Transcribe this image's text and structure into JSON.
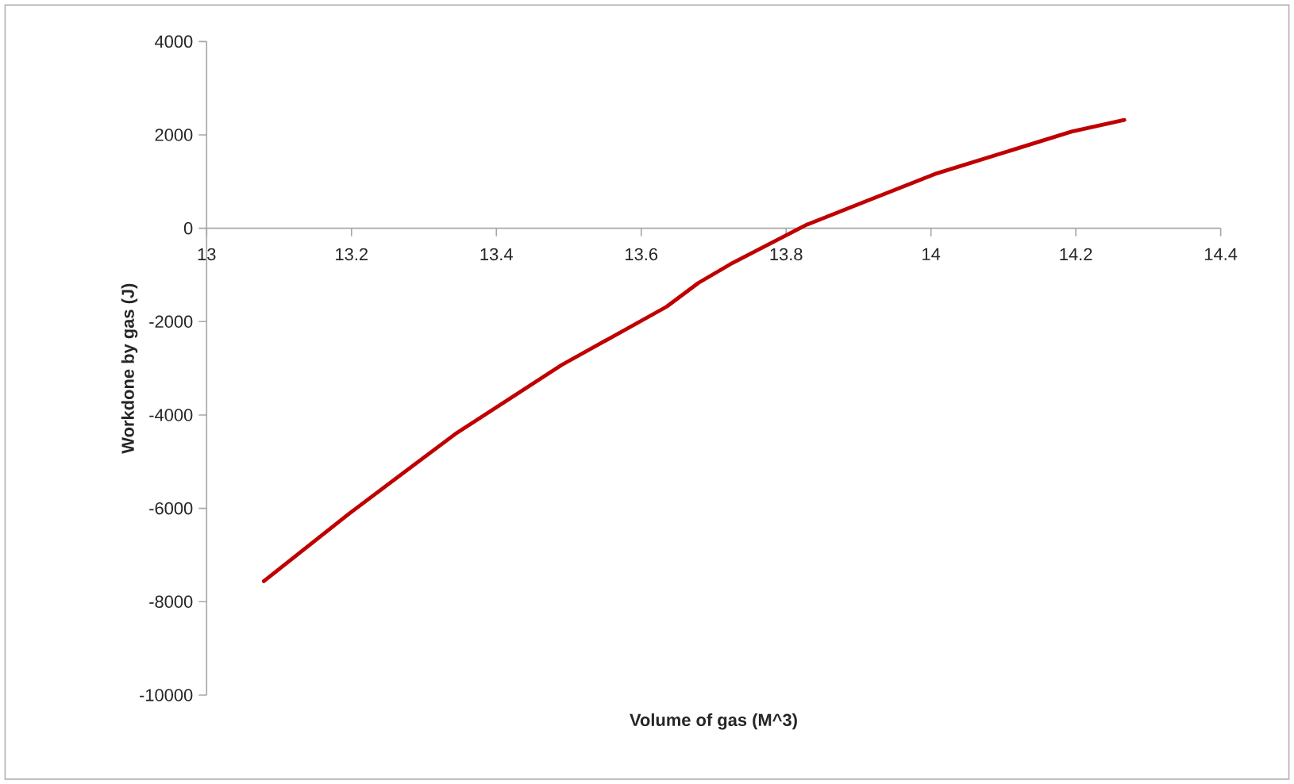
{
  "chart_data": {
    "type": "line",
    "xlabel": "Volume of gas (M^3)",
    "ylabel": "Workdone by gas (J)",
    "x": [
      13.079,
      13.197,
      13.343,
      13.49,
      13.635,
      13.679,
      13.723,
      13.829,
      14.005,
      14.194,
      14.267
    ],
    "values": [
      -7560,
      -6110,
      -4410,
      -2930,
      -1680,
      -1170,
      -770,
      80,
      1160,
      2070,
      2320
    ],
    "color": "#c00000",
    "marker": "none",
    "xlim": [
      13,
      14.4
    ],
    "ylim": [
      -10000,
      4000
    ],
    "xticks": [
      13,
      13.2,
      13.4,
      13.6,
      13.8,
      14,
      14.2,
      14.4
    ],
    "yticks": [
      -10000,
      -8000,
      -6000,
      -4000,
      -2000,
      0,
      2000,
      4000
    ]
  }
}
